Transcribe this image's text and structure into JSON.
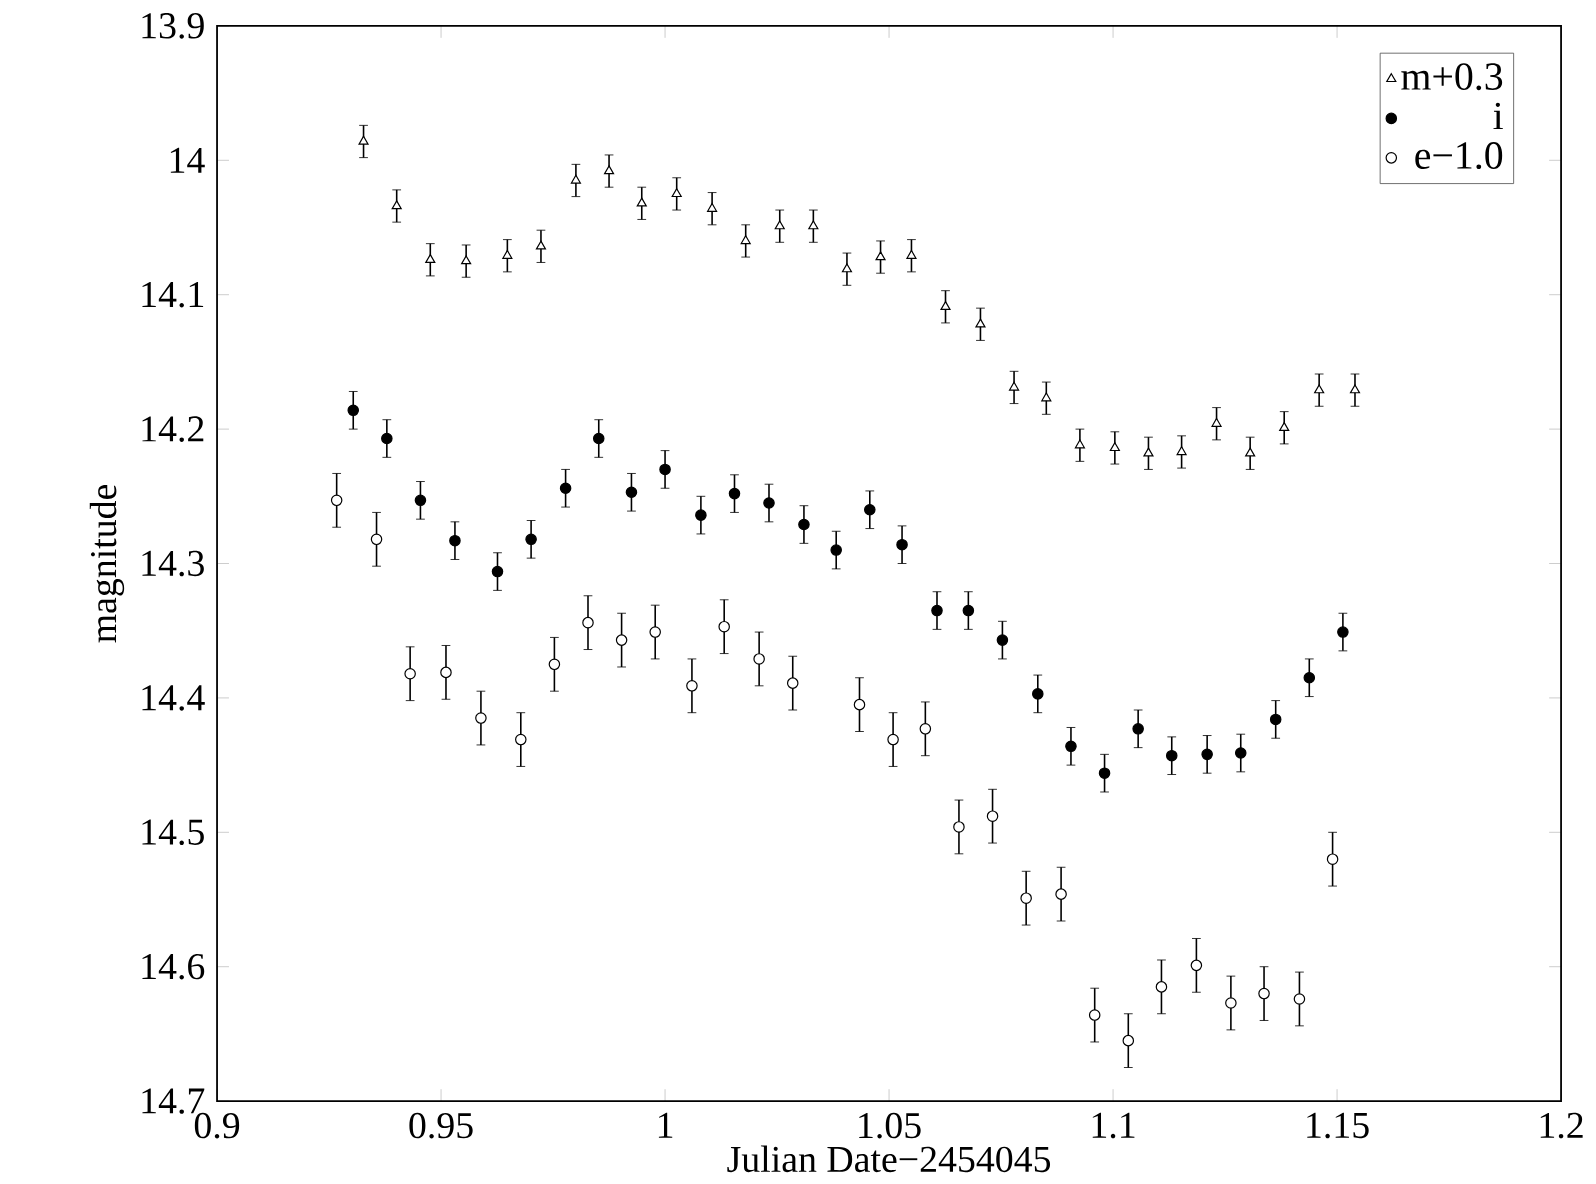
{
  "chart_data": {
    "type": "scatter",
    "xlabel": "Julian Date−2454045",
    "ylabel": "magnitude",
    "xlim": [
      0.9,
      1.2
    ],
    "xticks": [
      0.9,
      0.95,
      1,
      1.05,
      1.1,
      1.15,
      1.2
    ],
    "ylim": [
      14.7,
      13.9
    ],
    "yticks": [
      13.9,
      14,
      14.1,
      14.2,
      14.3,
      14.4,
      14.5,
      14.6,
      14.7
    ],
    "grid": false,
    "legend": "top right",
    "series": [
      {
        "name": "m+0.3",
        "color": "#ffffff",
        "marker": "triangle",
        "x": [
          0.9327,
          0.9401,
          0.9476,
          0.9556,
          0.9648,
          0.9723,
          0.9801,
          0.9875,
          0.9948,
          1.0026,
          1.0105,
          1.018,
          1.0256,
          1.0331,
          1.0406,
          1.0481,
          1.055,
          1.0626,
          1.0704,
          1.0779,
          1.0851,
          1.0926,
          1.1004,
          1.1079,
          1.1153,
          1.1231,
          1.1306,
          1.1382,
          1.146,
          1.154
        ],
        "values": [
          13.986,
          14.034,
          14.074,
          14.075,
          14.071,
          14.064,
          14.015,
          14.008,
          14.032,
          14.025,
          14.036,
          14.06,
          14.049,
          14.049,
          14.081,
          14.072,
          14.071,
          14.109,
          14.122,
          14.169,
          14.177,
          14.212,
          14.214,
          14.218,
          14.217,
          14.196,
          14.218,
          14.199,
          14.171,
          14.171
        ],
        "errors": [
          0.012,
          0.012,
          0.012,
          0.012,
          0.012,
          0.012,
          0.012,
          0.012,
          0.012,
          0.012,
          0.012,
          0.012,
          0.012,
          0.012,
          0.012,
          0.012,
          0.012,
          0.012,
          0.012,
          0.012,
          0.012,
          0.012,
          0.012,
          0.012,
          0.012,
          0.012,
          0.012,
          0.012,
          0.012,
          0.012
        ]
      },
      {
        "name": "i",
        "color": "#000000",
        "marker": "circle",
        "x": [
          0.9304,
          0.9379,
          0.9454,
          0.9531,
          0.9626,
          0.9701,
          0.9778,
          0.9852,
          0.9925,
          1.0,
          1.008,
          1.0155,
          1.0232,
          1.031,
          1.0382,
          1.0457,
          1.0529,
          1.0607,
          1.0677,
          1.0753,
          1.0832,
          1.0906,
          1.0981,
          1.1056,
          1.1131,
          1.121,
          1.1285,
          1.1363,
          1.1438,
          1.1513
        ],
        "values": [
          14.186,
          14.207,
          14.253,
          14.283,
          14.306,
          14.282,
          14.244,
          14.207,
          14.247,
          14.23,
          14.264,
          14.248,
          14.255,
          14.271,
          14.29,
          14.26,
          14.286,
          14.335,
          14.335,
          14.357,
          14.397,
          14.436,
          14.456,
          14.423,
          14.443,
          14.442,
          14.441,
          14.416,
          14.385,
          14.351
        ],
        "errors": [
          0.014,
          0.014,
          0.014,
          0.014,
          0.014,
          0.014,
          0.014,
          0.014,
          0.014,
          0.014,
          0.014,
          0.014,
          0.014,
          0.014,
          0.014,
          0.014,
          0.014,
          0.014,
          0.014,
          0.014,
          0.014,
          0.014,
          0.014,
          0.014,
          0.014,
          0.014,
          0.014,
          0.014,
          0.014,
          0.014
        ]
      },
      {
        "name": "e−1.0",
        "color": "#ffffff",
        "marker": "circle",
        "x": [
          0.9267,
          0.9356,
          0.9431,
          0.9511,
          0.9589,
          0.9678,
          0.9753,
          0.9828,
          0.9903,
          0.9978,
          1.006,
          1.0132,
          1.021,
          1.0285,
          1.0434,
          1.0509,
          1.0581,
          1.0656,
          1.0731,
          1.0806,
          1.0884,
          1.0959,
          1.1034,
          1.1108,
          1.1186,
          1.1263,
          1.1337,
          1.1416,
          1.149
        ],
        "values": [
          14.253,
          14.282,
          14.382,
          14.381,
          14.415,
          14.431,
          14.375,
          14.344,
          14.357,
          14.351,
          14.391,
          14.347,
          14.371,
          14.389,
          14.405,
          14.431,
          14.423,
          14.496,
          14.488,
          14.549,
          14.546,
          14.636,
          14.655,
          14.615,
          14.599,
          14.627,
          14.62,
          14.624,
          14.52
        ],
        "errors": [
          0.02,
          0.02,
          0.02,
          0.02,
          0.02,
          0.02,
          0.02,
          0.02,
          0.02,
          0.02,
          0.02,
          0.02,
          0.02,
          0.02,
          0.02,
          0.02,
          0.02,
          0.02,
          0.02,
          0.02,
          0.02,
          0.02,
          0.02,
          0.02,
          0.02,
          0.02,
          0.02,
          0.02,
          0.02
        ]
      }
    ]
  }
}
